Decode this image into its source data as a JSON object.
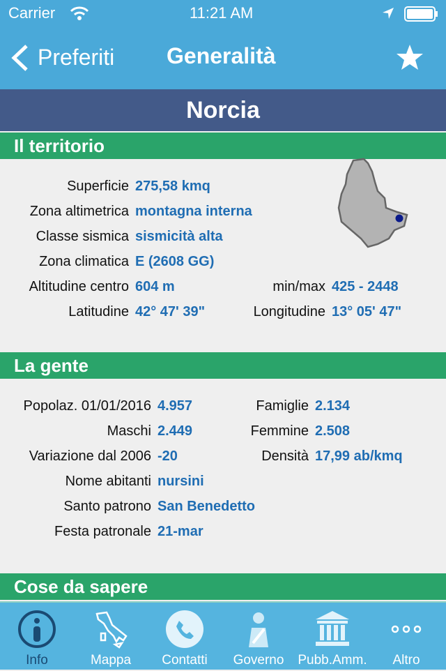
{
  "status": {
    "carrier": "Carrier",
    "time": "11:21 AM"
  },
  "nav": {
    "back": "Preferiti",
    "title": "Generalità"
  },
  "town": "Norcia",
  "territorio": {
    "header": "Il territorio",
    "rows": [
      {
        "label": "Superficie",
        "value": "275,58 kmq"
      },
      {
        "label": "Zona altimetrica",
        "value": "montagna interna"
      },
      {
        "label": "Classe sismica",
        "value": "sismicità alta"
      },
      {
        "label": "Zona climatica",
        "value": "E  (2608 GG)"
      },
      {
        "label": "Altitudine centro",
        "value": "604 m",
        "label2": "min/max",
        "value2": "425 - 2448"
      },
      {
        "label": "Latitudine",
        "value": "42° 47' 39\"",
        "label2": "Longitudine",
        "value2": "13° 05' 47\""
      }
    ]
  },
  "gente": {
    "header": "La gente",
    "rows": [
      {
        "label": "Popolaz. 01/01/2016",
        "value": "4.957",
        "label2": "Famiglie",
        "value2": "2.134"
      },
      {
        "label": "Maschi",
        "value": "2.449",
        "label2": "Femmine",
        "value2": "2.508"
      },
      {
        "label": "Variazione dal 2006",
        "value": "-20",
        "label2": "Densità",
        "value2": "17,99 ab/kmq"
      },
      {
        "label": "Nome abitanti",
        "value": "nursini"
      },
      {
        "label": "Santo patrono",
        "value": "San Benedetto"
      },
      {
        "label": "Festa patronale",
        "value": "21-mar"
      }
    ]
  },
  "cose": {
    "header": "Cose da sapere"
  },
  "tabs": [
    {
      "label": "Info",
      "icon": "info-icon",
      "active": true
    },
    {
      "label": "Mappa",
      "icon": "italy-map-icon"
    },
    {
      "label": "Contatti",
      "icon": "phone-icon"
    },
    {
      "label": "Governo",
      "icon": "mayor-icon"
    },
    {
      "label": "Pubb.Amm.",
      "icon": "building-icon"
    },
    {
      "label": "Altro",
      "icon": "more-icon"
    }
  ],
  "colors": {
    "nav": "#4aa9d9",
    "band": "#435a89",
    "section": "#2aa46a",
    "value": "#1f6db3",
    "active_tab": "#1a4a73"
  }
}
